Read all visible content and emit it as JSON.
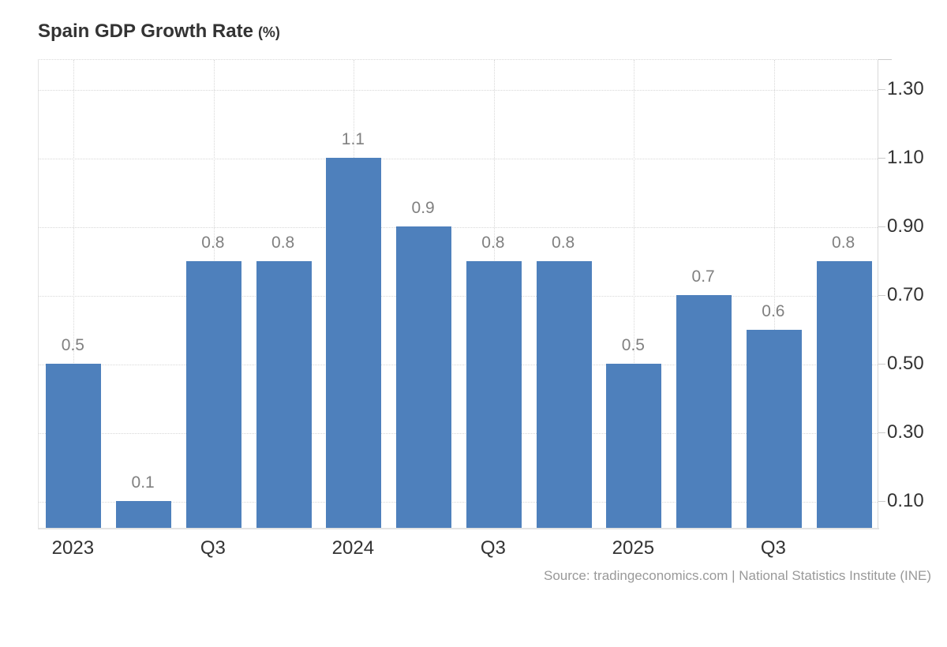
{
  "title": {
    "text": "Spain GDP Growth Rate",
    "suffix": "(%)"
  },
  "source": "Source: tradingeconomics.com | National Statistics Institute (INE)",
  "colors": {
    "bar": "#4e80bc",
    "grid": "#d8d8d8",
    "axis_line": "#e3e3e3",
    "tick": "#cccccc",
    "value_label": "#808080",
    "axis_label": "#333333",
    "title": "#333333",
    "source_text": "#999999",
    "background": "#ffffff"
  },
  "chart_data": {
    "type": "bar",
    "title": "Spain GDP Growth Rate (%)",
    "xlabel": "",
    "ylabel": "",
    "values": [
      0.5,
      0.1,
      0.8,
      0.8,
      1.1,
      0.9,
      0.8,
      0.8,
      0.5,
      0.7,
      0.6,
      0.8
    ],
    "bar_labels": [
      "0.5",
      "0.1",
      "0.8",
      "0.8",
      "1.1",
      "0.9",
      "0.8",
      "0.8",
      "0.5",
      "0.7",
      "0.6",
      "0.8"
    ],
    "x_ticks": [
      {
        "bar_index": 0,
        "label": "2023"
      },
      {
        "bar_index": 2,
        "label": "Q3"
      },
      {
        "bar_index": 4,
        "label": "2024"
      },
      {
        "bar_index": 6,
        "label": "Q3"
      },
      {
        "bar_index": 8,
        "label": "2025"
      },
      {
        "bar_index": 10,
        "label": "Q3"
      }
    ],
    "y_ticks": [
      {
        "value": 1.3,
        "label": "1.30"
      },
      {
        "value": 1.1,
        "label": "1.10"
      },
      {
        "value": 0.9,
        "label": "0.90"
      },
      {
        "value": 0.7,
        "label": "0.70"
      },
      {
        "value": 0.5,
        "label": "0.50"
      },
      {
        "value": 0.3,
        "label": "0.30"
      },
      {
        "value": 0.1,
        "label": "0.10"
      }
    ],
    "ylim": [
      0,
      1.37
    ],
    "y_axis_side": "right",
    "grid": "dotted",
    "legend": "none"
  }
}
